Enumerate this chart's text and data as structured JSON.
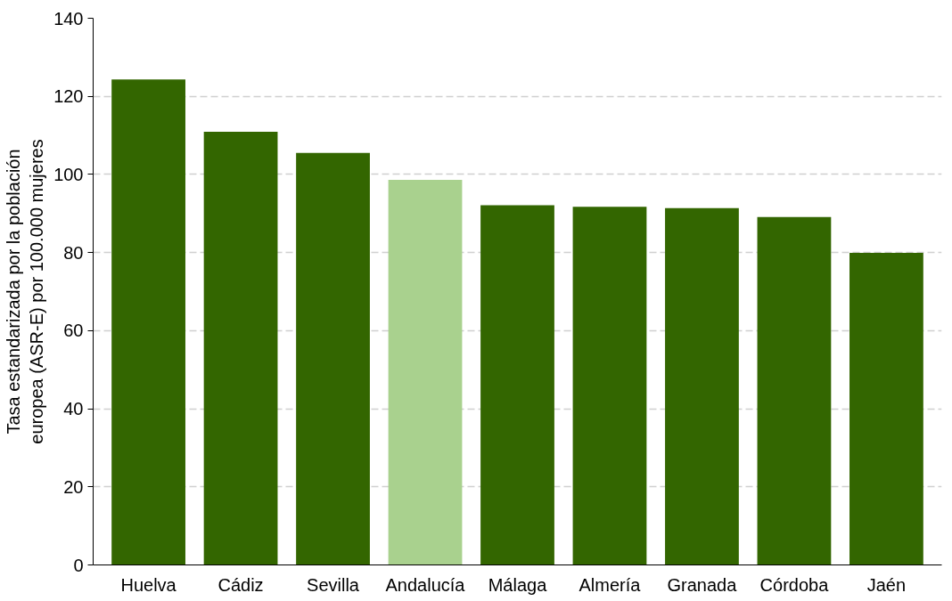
{
  "chart_data": {
    "type": "bar",
    "ylabel": "Tasa estandarizada por la población\neuropea (ASR-E) por 100.000 mujeres",
    "categories": [
      "Huelva",
      "Cádiz",
      "Sevilla",
      "Andalucía",
      "Málaga",
      "Almería",
      "Granada",
      "Córdoba",
      "Jaén"
    ],
    "values": [
      124.3,
      110.9,
      105.5,
      98.6,
      92.1,
      91.7,
      91.4,
      89.1,
      79.9
    ],
    "colors": [
      "#336600",
      "#336600",
      "#336600",
      "#a9d18e",
      "#336600",
      "#336600",
      "#336600",
      "#336600",
      "#336600"
    ],
    "ylim": [
      0,
      140
    ],
    "yticks": [
      0,
      20,
      40,
      60,
      80,
      100,
      120,
      140
    ],
    "grid": "y"
  }
}
